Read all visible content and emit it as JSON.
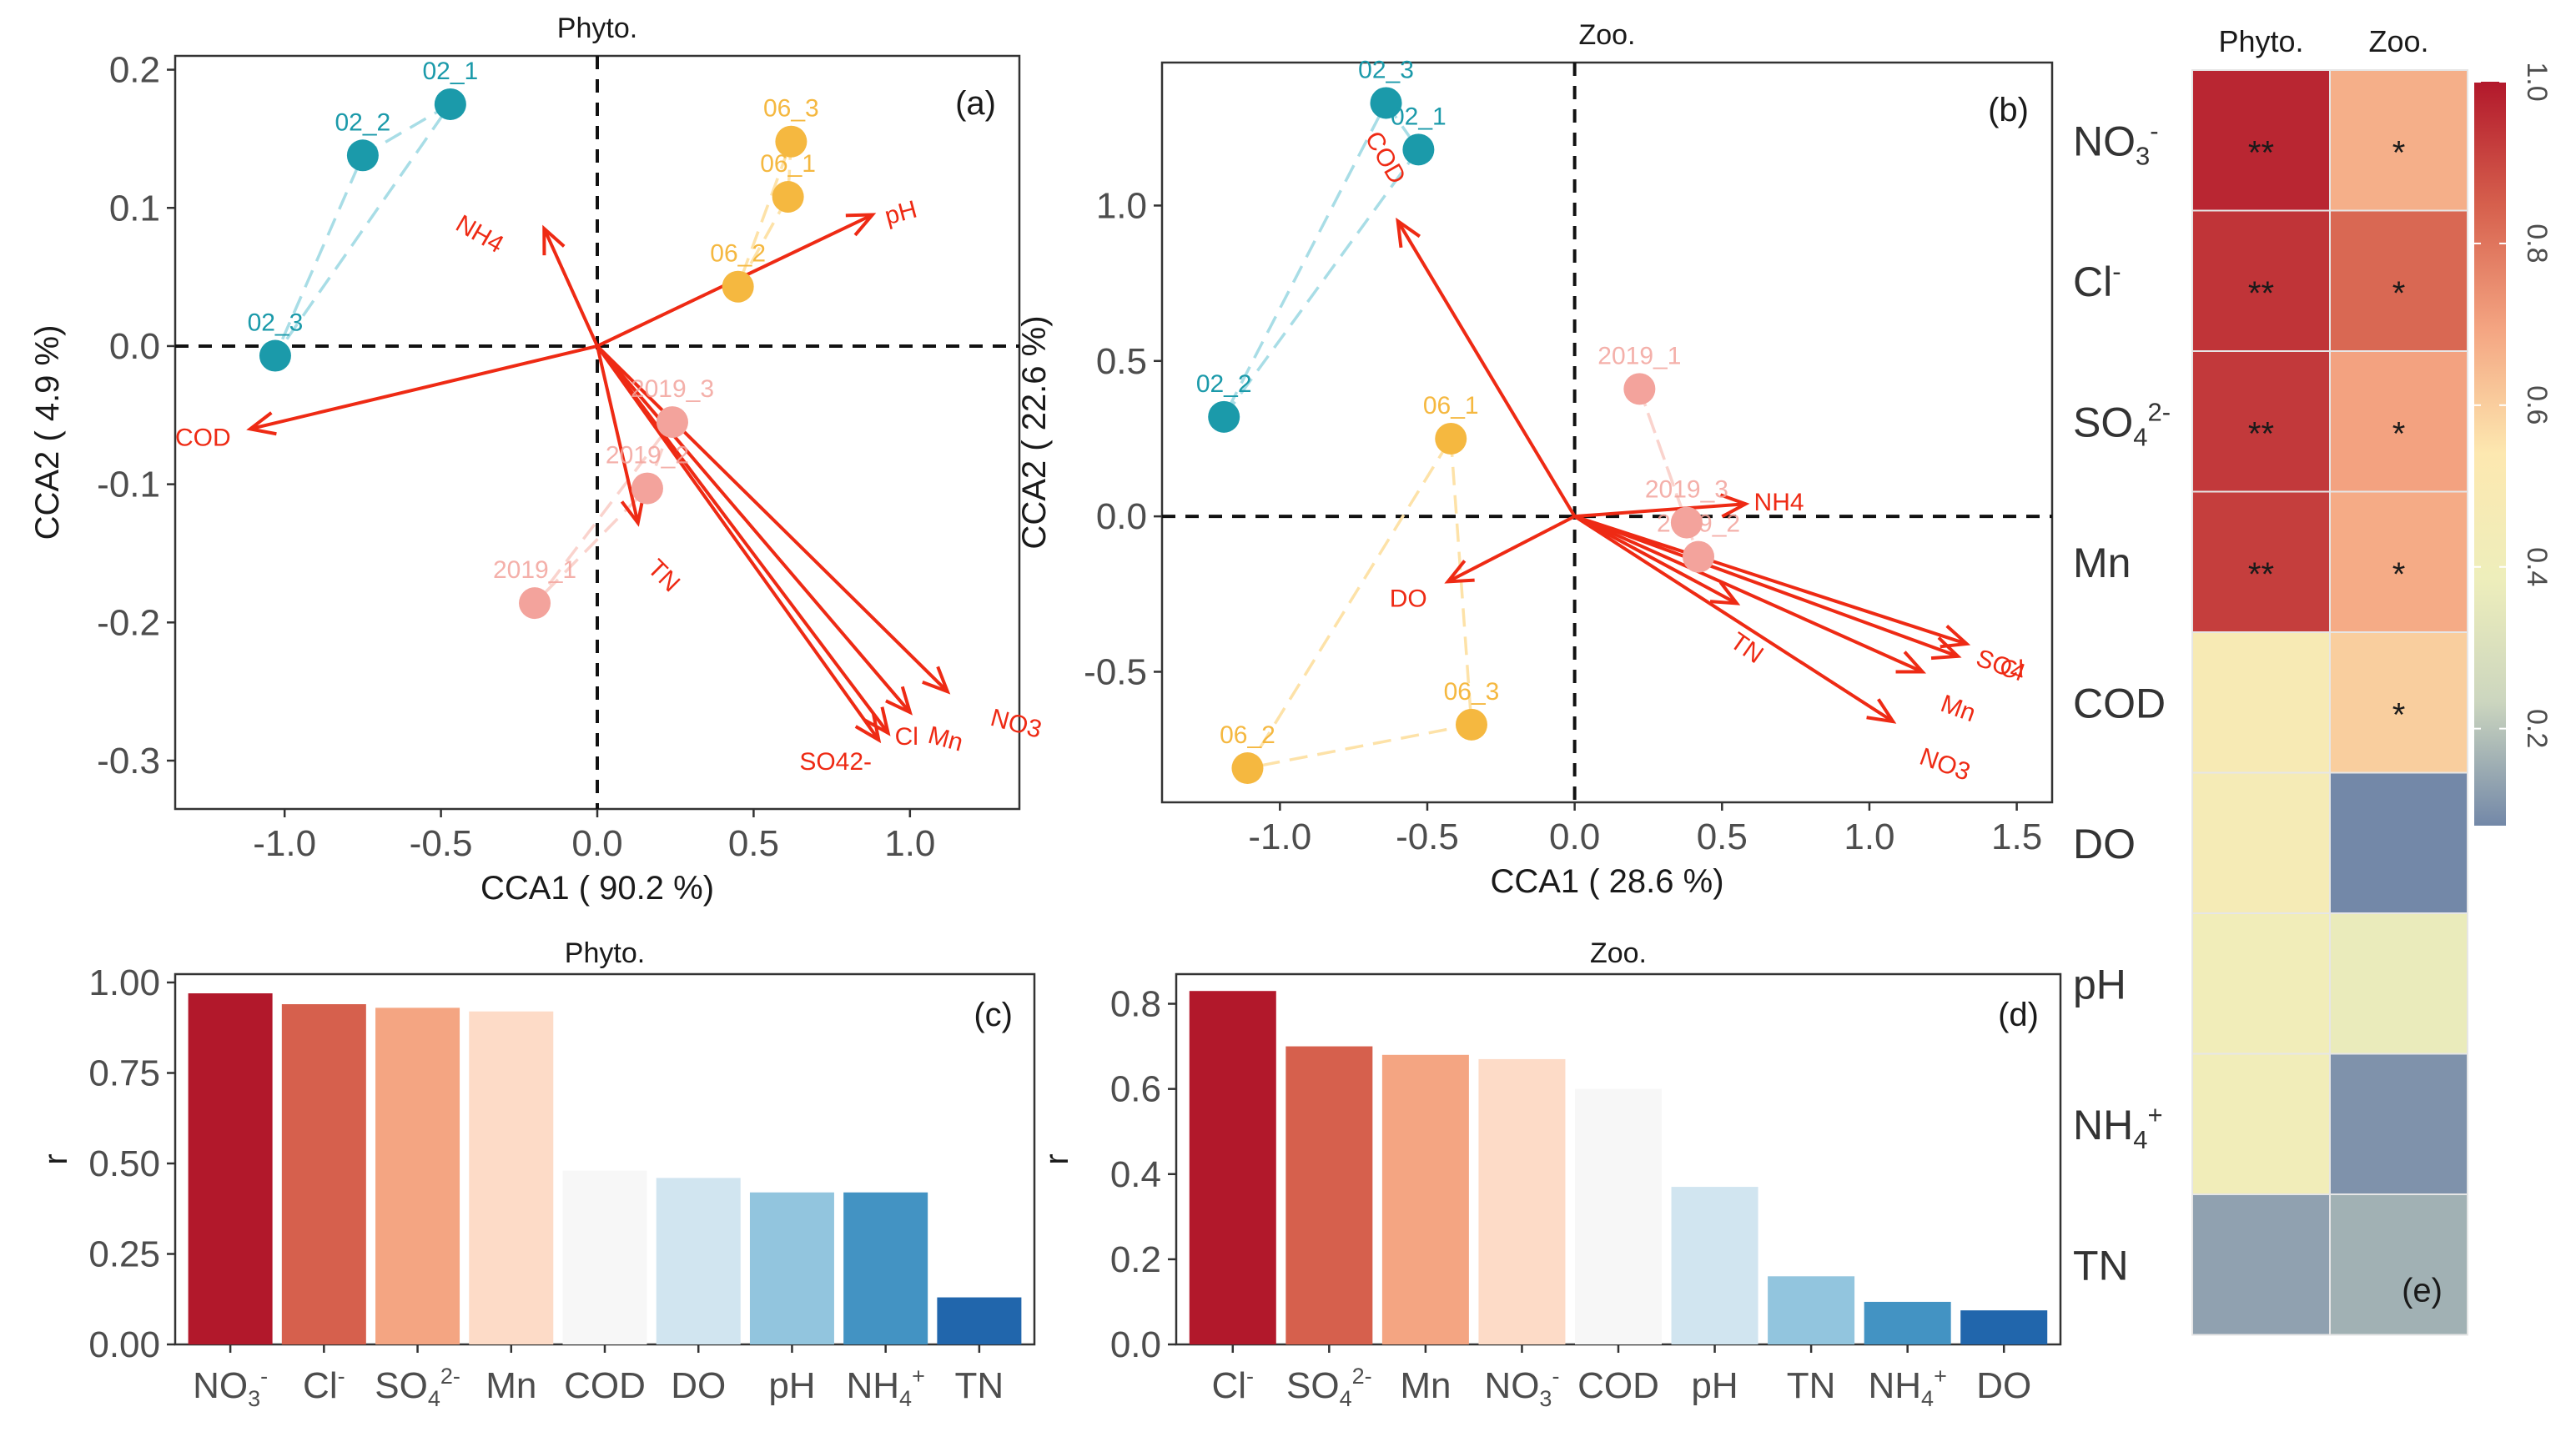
{
  "chart_data": [
    {
      "id": "a",
      "type": "scatter",
      "subtype": "cca_biplot",
      "title": "Phyto.",
      "panel": "(a)",
      "xlabel": "CCA1 ( 90.2 %)",
      "ylabel": "CCA2 ( 4.9 %)",
      "xlim": [
        -1.35,
        1.35
      ],
      "ylim": [
        -0.335,
        0.21
      ],
      "xticks": [
        -1.0,
        -0.5,
        0.0,
        0.5,
        1.0
      ],
      "xtick_labels": [
        "-1.0",
        "-0.5",
        "0.0",
        "0.5",
        "1.0"
      ],
      "yticks": [
        0.2,
        0.1,
        0.0,
        -0.1,
        -0.2,
        -0.3
      ],
      "ytick_labels": [
        "0.2",
        "0.1",
        "0.0",
        "-0.1",
        "-0.2",
        "-0.3"
      ],
      "groups": [
        {
          "name": "02",
          "color": "#1b9aaa",
          "hull": "#a8dde6",
          "points": [
            {
              "label": "02_1",
              "x": -0.47,
              "y": 0.175
            },
            {
              "label": "02_2",
              "x": -0.75,
              "y": 0.138
            },
            {
              "label": "02_3",
              "x": -1.03,
              "y": -0.007
            }
          ]
        },
        {
          "name": "06",
          "color": "#f5b840",
          "hull": "#fde2a8",
          "points": [
            {
              "label": "06_3",
              "x": 0.62,
              "y": 0.148
            },
            {
              "label": "06_1",
              "x": 0.61,
              "y": 0.108
            },
            {
              "label": "06_2",
              "x": 0.45,
              "y": 0.043
            }
          ]
        },
        {
          "name": "2019",
          "color": "#f3a39c",
          "hull": "#fad3cd",
          "points": [
            {
              "label": "2019_3",
              "x": 0.24,
              "y": -0.055
            },
            {
              "label": "2019_2",
              "x": 0.16,
              "y": -0.103
            },
            {
              "label": "2019_1",
              "x": -0.2,
              "y": -0.186
            }
          ]
        }
      ],
      "vectors": [
        {
          "label": "pH",
          "x": 0.88,
          "y": 0.095
        },
        {
          "label": "NH4",
          "x": -0.17,
          "y": 0.085
        },
        {
          "label": "COD",
          "x": -1.11,
          "y": -0.06
        },
        {
          "label": "TN",
          "x": 0.13,
          "y": -0.128
        },
        {
          "label": "SO42-",
          "x": 0.9,
          "y": -0.285
        },
        {
          "label": "Cl",
          "x": 0.93,
          "y": -0.28
        },
        {
          "label": "Mn",
          "x": 1.0,
          "y": -0.265
        },
        {
          "label": "NO3",
          "x": 1.12,
          "y": -0.25
        }
      ]
    },
    {
      "id": "b",
      "type": "scatter",
      "subtype": "cca_biplot",
      "title": "Zoo.",
      "panel": "(b)",
      "xlabel": "CCA1 ( 28.6 %)",
      "ylabel": "CCA2 ( 22.6 %)",
      "xlim": [
        -1.4,
        1.62
      ],
      "ylim": [
        -0.92,
        1.46
      ],
      "xticks": [
        -1.0,
        -0.5,
        0.0,
        0.5,
        1.0,
        1.5
      ],
      "xtick_labels": [
        "-1.0",
        "-0.5",
        "0.0",
        "0.5",
        "1.0",
        "1.5"
      ],
      "yticks": [
        1.0,
        0.5,
        0.0,
        -0.5
      ],
      "ytick_labels": [
        "1.0",
        "0.5",
        "0.0",
        "-0.5"
      ],
      "groups": [
        {
          "name": "02",
          "color": "#1b9aaa",
          "hull": "#a8dde6",
          "points": [
            {
              "label": "02_3",
              "x": -0.64,
              "y": 1.33
            },
            {
              "label": "02_1",
              "x": -0.53,
              "y": 1.18
            },
            {
              "label": "02_2",
              "x": -1.19,
              "y": 0.32
            }
          ]
        },
        {
          "name": "06",
          "color": "#f5b840",
          "hull": "#fde2a8",
          "points": [
            {
              "label": "06_1",
              "x": -0.42,
              "y": 0.25
            },
            {
              "label": "06_3",
              "x": -0.35,
              "y": -0.67
            },
            {
              "label": "06_2",
              "x": -1.11,
              "y": -0.81
            }
          ]
        },
        {
          "name": "2019",
          "color": "#f3a39c",
          "hull": "#fad3cd",
          "points": [
            {
              "label": "2019_1",
              "x": 0.22,
              "y": 0.41
            },
            {
              "label": "2019_3",
              "x": 0.38,
              "y": -0.02
            },
            {
              "label": "2019_2",
              "x": 0.42,
              "y": -0.13
            }
          ]
        }
      ],
      "vectors": [
        {
          "label": "COD",
          "x": -0.6,
          "y": 0.95
        },
        {
          "label": "NH4",
          "x": 0.58,
          "y": 0.04
        },
        {
          "label": "DO",
          "x": -0.43,
          "y": -0.21
        },
        {
          "label": "TN",
          "x": 0.55,
          "y": -0.28
        },
        {
          "label": "Cl",
          "x": 1.33,
          "y": -0.41
        },
        {
          "label": "SO4",
          "x": 1.3,
          "y": -0.45
        },
        {
          "label": "Mn",
          "x": 1.18,
          "y": -0.5
        },
        {
          "label": "NO3",
          "x": 1.08,
          "y": -0.66
        }
      ]
    },
    {
      "id": "c",
      "type": "bar",
      "title": "Phyto.",
      "panel": "(c)",
      "ylabel": "r",
      "ylim": [
        0,
        1.0
      ],
      "yticks": [
        0.0,
        0.25,
        0.5,
        0.75,
        1.0
      ],
      "ytick_labels": [
        "0.00",
        "0.25",
        "0.50",
        "0.75",
        "1.00"
      ],
      "categories": [
        {
          "base": "NO",
          "sub": "3",
          "sup": "-"
        },
        {
          "base": "Cl",
          "sub": "",
          "sup": "-"
        },
        {
          "base": "SO",
          "sub": "4",
          "sup": "2-"
        },
        {
          "base": "Mn",
          "sub": "",
          "sup": ""
        },
        {
          "base": "COD",
          "sub": "",
          "sup": ""
        },
        {
          "base": "DO",
          "sub": "",
          "sup": ""
        },
        {
          "base": "pH",
          "sub": "",
          "sup": ""
        },
        {
          "base": "NH",
          "sub": "4",
          "sup": "+"
        },
        {
          "base": "TN",
          "sub": "",
          "sup": ""
        }
      ],
      "values": [
        0.97,
        0.94,
        0.93,
        0.92,
        0.48,
        0.46,
        0.42,
        0.42,
        0.13
      ],
      "colors": [
        "#b2182b",
        "#d6604d",
        "#f4a582",
        "#fddbc7",
        "#f7f7f7",
        "#d1e5f0",
        "#92c5de",
        "#4393c3",
        "#2166ac"
      ]
    },
    {
      "id": "d",
      "type": "bar",
      "title": "Zoo.",
      "panel": "(d)",
      "ylabel": "r",
      "ylim": [
        0,
        0.85
      ],
      "yticks": [
        0.0,
        0.2,
        0.4,
        0.6,
        0.8
      ],
      "ytick_labels": [
        "0.0",
        "0.2",
        "0.4",
        "0.6",
        "0.8"
      ],
      "categories": [
        {
          "base": "Cl",
          "sub": "",
          "sup": "-"
        },
        {
          "base": "SO",
          "sub": "4",
          "sup": "2-"
        },
        {
          "base": "Mn",
          "sub": "",
          "sup": ""
        },
        {
          "base": "NO",
          "sub": "3",
          "sup": "-"
        },
        {
          "base": "COD",
          "sub": "",
          "sup": ""
        },
        {
          "base": "pH",
          "sub": "",
          "sup": ""
        },
        {
          "base": "TN",
          "sub": "",
          "sup": ""
        },
        {
          "base": "NH",
          "sub": "4",
          "sup": "+"
        },
        {
          "base": "DO",
          "sub": "",
          "sup": ""
        }
      ],
      "values": [
        0.83,
        0.7,
        0.68,
        0.67,
        0.6,
        0.37,
        0.16,
        0.1,
        0.08
      ],
      "colors": [
        "#b2182b",
        "#d6604d",
        "#f4a582",
        "#fddbc7",
        "#f7f7f7",
        "#d1e5f0",
        "#92c5de",
        "#4393c3",
        "#2166ac"
      ]
    },
    {
      "id": "e",
      "type": "heatmap",
      "panel": "(e)",
      "columns": [
        "Phyto.",
        "Zoo."
      ],
      "rows": [
        {
          "base": "NO",
          "sub": "3",
          "sup": "-"
        },
        {
          "base": "Cl",
          "sub": "",
          "sup": "-"
        },
        {
          "base": "SO",
          "sub": "4",
          "sup": "2-"
        },
        {
          "base": "Mn",
          "sub": "",
          "sup": ""
        },
        {
          "base": "COD",
          "sub": "",
          "sup": ""
        },
        {
          "base": "DO",
          "sub": "",
          "sup": ""
        },
        {
          "base": "pH",
          "sub": "",
          "sup": ""
        },
        {
          "base": "NH",
          "sub": "4",
          "sup": "+"
        },
        {
          "base": "TN",
          "sub": "",
          "sup": ""
        }
      ],
      "values": [
        [
          0.97,
          0.67
        ],
        [
          0.94,
          0.83
        ],
        [
          0.93,
          0.7
        ],
        [
          0.92,
          0.68
        ],
        [
          0.48,
          0.6
        ],
        [
          0.46,
          0.08
        ],
        [
          0.42,
          0.37
        ],
        [
          0.42,
          0.1
        ],
        [
          0.13,
          0.16
        ]
      ],
      "significance": [
        [
          "**",
          "*"
        ],
        [
          "**",
          "*"
        ],
        [
          "**",
          "*"
        ],
        [
          "**",
          "*"
        ],
        [
          "",
          "*"
        ],
        [
          "",
          ""
        ],
        [
          "",
          ""
        ],
        [
          "",
          ""
        ],
        [
          "",
          ""
        ]
      ],
      "colorbar": {
        "ticks": [
          1.0,
          0.8,
          0.6,
          0.4,
          0.2
        ],
        "tick_labels": [
          "1.0",
          "0.8",
          "0.6",
          "0.4",
          "0.2"
        ],
        "range": [
          0.08,
          1.0
        ],
        "stops": [
          "#b2182b",
          "#d6604d",
          "#f4a582",
          "#fde8b0",
          "#eeeebb",
          "#ccd6bf",
          "#7388a8"
        ]
      }
    }
  ]
}
